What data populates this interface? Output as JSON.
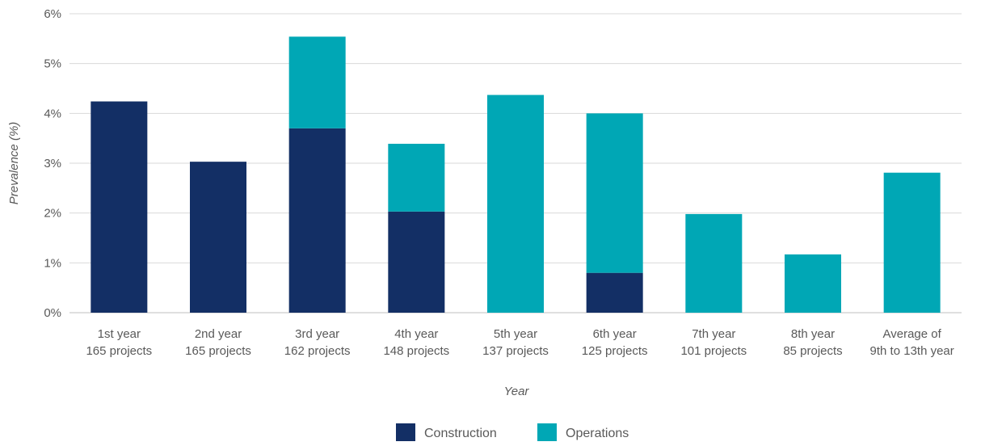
{
  "chart_data": {
    "type": "bar",
    "stacked": true,
    "title": "",
    "xlabel": "Year",
    "ylabel": "Prevalence (%)",
    "ylim": [
      0,
      6
    ],
    "yticks": [
      "0%",
      "1%",
      "2%",
      "3%",
      "4%",
      "5%",
      "6%"
    ],
    "grid": true,
    "legend_position": "bottom",
    "categories": [
      [
        "1st year",
        "165 projects"
      ],
      [
        "2nd year",
        "165 projects"
      ],
      [
        "3rd year",
        "162 projects"
      ],
      [
        "4th year",
        "148 projects"
      ],
      [
        "5th year",
        "137 projects"
      ],
      [
        "6th year",
        "125 projects"
      ],
      [
        "7th year",
        "101 projects"
      ],
      [
        "8th year",
        "85 projects"
      ],
      [
        "Average of",
        "9th to 13th year"
      ]
    ],
    "series": [
      {
        "name": "Construction",
        "color": "#132f65",
        "values": [
          4.24,
          3.03,
          3.7,
          2.03,
          0,
          0.8,
          0,
          0,
          0
        ]
      },
      {
        "name": "Operations",
        "color": "#00a7b5",
        "values": [
          0,
          0,
          1.84,
          1.36,
          4.37,
          3.2,
          1.98,
          1.17,
          2.81
        ]
      }
    ]
  }
}
